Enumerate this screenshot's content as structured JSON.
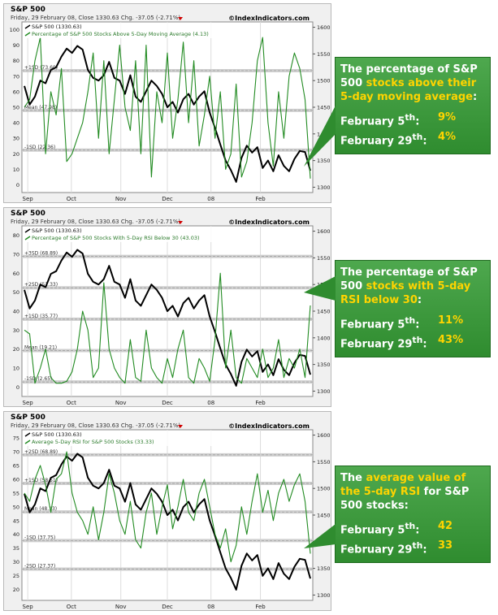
{
  "common": {
    "title": "S&P 500",
    "subtitle": "Friday, 29 February 08, Close 1330.63 Chg. -37.05 (-2.71%)",
    "credit": "©IndexIndicators.com",
    "sp_legend": "S&P 500 (1330.63)",
    "x_ticks": [
      "Sep",
      "Oct",
      "Nov",
      "Dec",
      "08",
      "Feb"
    ],
    "right_ticks": [
      "1600",
      "1550",
      "1500",
      "1450",
      "1400",
      "1350",
      "1300"
    ],
    "colors": {
      "sp": "#000000",
      "indicator": "#228b22",
      "accent": "#ffd400"
    }
  },
  "callouts": [
    {
      "pre": "The percentage of S&P 500 ",
      "hl": "stocks above their 5-day moving average",
      "post": ":",
      "rows": [
        {
          "label": "February 5",
          "sup": "th",
          "suffix": ":",
          "value": "9%"
        },
        {
          "label": "February 29",
          "sup": "th",
          "suffix": ":",
          "value": "4%"
        }
      ]
    },
    {
      "pre": "The percentage of S&P 500 ",
      "hl": "stocks with 5-day RSI below 30",
      "post": ":",
      "rows": [
        {
          "label": "February 5",
          "sup": "th",
          "suffix": ":",
          "value": "11%"
        },
        {
          "label": "February 29",
          "sup": "th",
          "suffix": ":",
          "value": "43%"
        }
      ]
    },
    {
      "pre": "The ",
      "hl": "average value of the 5-day RSI",
      "post": " for S&P 500 stocks:",
      "rows": [
        {
          "label": "February 5",
          "sup": "th",
          "suffix": ":",
          "value": "42"
        },
        {
          "label": "February 29",
          "sup": "th",
          "suffix": ":",
          "value": "33"
        }
      ]
    }
  ],
  "chart_data": [
    {
      "type": "line",
      "title": "S&P 500",
      "x_ticks": [
        "Sep",
        "Oct",
        "Nov",
        "Dec",
        "08",
        "Feb"
      ],
      "left_ticks": [
        "100",
        "90",
        "80",
        "70",
        "60",
        "50",
        "40",
        "30",
        "20",
        "10",
        "0"
      ],
      "ylim_left": [
        -5,
        105
      ],
      "ylim_right": [
        1290,
        1610
      ],
      "ref_lines": [
        {
          "label": "+1SD (73.60)",
          "value": 73.6
        },
        {
          "label": "Mean (47.98)",
          "value": 47.98
        },
        {
          "label": "-1SD (22.36)",
          "value": 22.36
        }
      ],
      "series": [
        {
          "name": "S&P 500 (1330.63)",
          "axis": "right",
          "values": [
            1490,
            1455,
            1470,
            1500,
            1495,
            1520,
            1525,
            1545,
            1560,
            1552,
            1565,
            1558,
            1520,
            1505,
            1500,
            1510,
            1535,
            1505,
            1500,
            1475,
            1510,
            1470,
            1460,
            1480,
            1500,
            1490,
            1475,
            1450,
            1460,
            1440,
            1465,
            1475,
            1455,
            1470,
            1480,
            1440,
            1411,
            1380,
            1350,
            1332,
            1310,
            1355,
            1378,
            1365,
            1375,
            1336,
            1350,
            1330,
            1360,
            1340,
            1330,
            1353,
            1368,
            1366,
            1331
          ]
        },
        {
          "name": "Percentage of S&P 500 Stocks Above 5-Day Moving Average (4.13)",
          "axis": "left",
          "values": [
            50,
            55,
            80,
            95,
            20,
            60,
            45,
            75,
            15,
            20,
            30,
            40,
            60,
            85,
            30,
            80,
            20,
            55,
            90,
            50,
            35,
            80,
            20,
            90,
            5,
            60,
            40,
            85,
            30,
            55,
            92,
            40,
            80,
            25,
            45,
            70,
            30,
            60,
            10,
            20,
            65,
            5,
            15,
            40,
            80,
            95,
            40,
            12,
            60,
            30,
            70,
            85,
            75,
            55,
            4
          ]
        }
      ]
    },
    {
      "type": "line",
      "title": "S&P 500",
      "x_ticks": [
        "Sep",
        "Oct",
        "Nov",
        "Dec",
        "08",
        "Feb"
      ],
      "left_ticks": [
        "80",
        "70",
        "60",
        "50",
        "40",
        "30",
        "20",
        "10",
        "0"
      ],
      "ylim_left": [
        -5,
        85
      ],
      "ylim_right": [
        1290,
        1610
      ],
      "ref_lines": [
        {
          "label": "+3SD (68.89)",
          "value": 68.89
        },
        {
          "label": "+2SD (52.33)",
          "value": 52.33
        },
        {
          "label": "+1SD (35.77)",
          "value": 35.77
        },
        {
          "label": "Mean (19.21)",
          "value": 19.21
        },
        {
          "label": "-1SD (2.65)",
          "value": 2.65
        }
      ],
      "series": [
        {
          "name": "S&P 500 (1330.63)",
          "axis": "right",
          "values": [
            1490,
            1455,
            1470,
            1500,
            1495,
            1520,
            1525,
            1545,
            1560,
            1552,
            1565,
            1558,
            1520,
            1505,
            1500,
            1510,
            1535,
            1505,
            1500,
            1475,
            1510,
            1470,
            1460,
            1480,
            1500,
            1490,
            1475,
            1450,
            1460,
            1440,
            1465,
            1475,
            1455,
            1470,
            1480,
            1440,
            1411,
            1380,
            1350,
            1332,
            1310,
            1355,
            1378,
            1365,
            1375,
            1336,
            1350,
            1330,
            1360,
            1340,
            1330,
            1353,
            1368,
            1366,
            1331
          ]
        },
        {
          "name": "Percentage of S&P 500 Stocks With 5-Day RSI Below 30 (43.03)",
          "axis": "left",
          "values": [
            30,
            28,
            2,
            10,
            20,
            5,
            2,
            2,
            3,
            8,
            20,
            40,
            30,
            5,
            10,
            55,
            20,
            10,
            5,
            2,
            25,
            5,
            3,
            30,
            10,
            5,
            2,
            15,
            5,
            20,
            30,
            5,
            2,
            15,
            10,
            3,
            25,
            60,
            10,
            30,
            5,
            2,
            15,
            10,
            5,
            20,
            5,
            10,
            25,
            5,
            15,
            10,
            20,
            5,
            43
          ]
        }
      ]
    },
    {
      "type": "line",
      "title": "S&P 500",
      "x_ticks": [
        "Sep",
        "Oct",
        "Nov",
        "Dec",
        "08",
        "Feb"
      ],
      "left_ticks": [
        "75",
        "70",
        "65",
        "60",
        "55",
        "50",
        "45",
        "40",
        "35",
        "30",
        "25",
        "20"
      ],
      "ylim_left": [
        16,
        78
      ],
      "ylim_right": [
        1290,
        1610
      ],
      "ref_lines": [
        {
          "label": "+2SD (68.89)",
          "value": 68.89
        },
        {
          "label": "+1SD (58.51)",
          "value": 58.51
        },
        {
          "label": "Mean (48.13)",
          "value": 48.13
        },
        {
          "label": "-1SD (37.75)",
          "value": 37.75
        },
        {
          "label": "-2SD (27.37)",
          "value": 27.37
        }
      ],
      "series": [
        {
          "name": "S&P 500 (1330.63)",
          "axis": "right",
          "values": [
            1490,
            1455,
            1470,
            1500,
            1495,
            1520,
            1525,
            1545,
            1560,
            1552,
            1565,
            1558,
            1520,
            1505,
            1500,
            1510,
            1535,
            1505,
            1500,
            1475,
            1510,
            1470,
            1460,
            1480,
            1500,
            1490,
            1475,
            1450,
            1460,
            1440,
            1465,
            1475,
            1455,
            1470,
            1480,
            1440,
            1411,
            1380,
            1350,
            1332,
            1310,
            1355,
            1378,
            1365,
            1375,
            1336,
            1350,
            1330,
            1360,
            1340,
            1330,
            1353,
            1368,
            1366,
            1331
          ]
        },
        {
          "name": "Average 5-Day RSI for S&P 500 Stocks (33.33)",
          "axis": "left",
          "values": [
            55,
            52,
            60,
            65,
            58,
            48,
            60,
            62,
            70,
            55,
            48,
            45,
            40,
            50,
            38,
            48,
            62,
            55,
            45,
            40,
            52,
            38,
            35,
            48,
            55,
            40,
            50,
            58,
            42,
            50,
            60,
            48,
            45,
            55,
            60,
            50,
            40,
            35,
            42,
            30,
            36,
            50,
            40,
            52,
            62,
            48,
            56,
            45,
            55,
            60,
            52,
            58,
            62,
            52,
            33
          ]
        }
      ]
    }
  ]
}
